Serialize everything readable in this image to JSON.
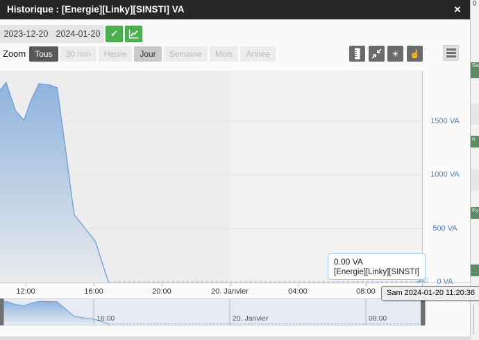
{
  "header": {
    "title": "Historique : [Energie][Linky][SINSTI] VA",
    "close": "×"
  },
  "controls": {
    "date_start": "2023-12-20",
    "date_end": "2024-01-20",
    "apply_label": "✓"
  },
  "zoom_bar": {
    "label": "Zoom",
    "buttons": [
      {
        "label": "Tous",
        "state": "active"
      },
      {
        "label": "30 min",
        "state": "disabled"
      },
      {
        "label": "Heure",
        "state": "disabled"
      },
      {
        "label": "Jour",
        "state": "enabled"
      },
      {
        "label": "Semaine",
        "state": "disabled"
      },
      {
        "label": "Mois",
        "state": "disabled"
      },
      {
        "label": "Année",
        "state": "disabled"
      }
    ],
    "tools": [
      {
        "icon": "ruler-icon"
      },
      {
        "icon": "compress-icon"
      },
      {
        "icon": "brightness-icon",
        "glyph": "☀"
      },
      {
        "icon": "hand-icon",
        "glyph": "☝"
      }
    ],
    "menu_icon": "hamburger-icon"
  },
  "chart_data": {
    "type": "area",
    "title": "",
    "xlabel": "",
    "ylabel": "VA",
    "x_unit": "hours since 2024-01-19 00:00",
    "xlim": [
      10.49,
      35.35
    ],
    "ylim": [
      0,
      1975
    ],
    "grid": true,
    "legend": "none",
    "day_band_split_t": 24,
    "series": [
      {
        "name": "[Energie][Linky][SINSTI]",
        "unit": "VA",
        "points": [
          [
            10.49,
            1790
          ],
          [
            10.85,
            1862
          ],
          [
            11.4,
            1600
          ],
          [
            11.9,
            1510
          ],
          [
            12.3,
            1690
          ],
          [
            12.78,
            1850
          ],
          [
            13.35,
            1840
          ],
          [
            13.85,
            1813
          ],
          [
            14.37,
            1210
          ],
          [
            14.85,
            630
          ],
          [
            15.0,
            600
          ],
          [
            15.6,
            480
          ],
          [
            16.1,
            380
          ],
          [
            16.5,
            180
          ],
          [
            16.87,
            0
          ],
          [
            35.34,
            0
          ]
        ]
      }
    ],
    "x_ticks": [
      {
        "t": 12,
        "label": "12:00"
      },
      {
        "t": 16,
        "label": "16:00"
      },
      {
        "t": 20,
        "label": "20:00"
      },
      {
        "t": 24,
        "label": "20. Janvier"
      },
      {
        "t": 28,
        "label": "04:00"
      },
      {
        "t": 32,
        "label": "08:00"
      }
    ],
    "y_ticks": [
      {
        "v": 0,
        "label": "0 VA"
      },
      {
        "v": 500,
        "label": "500 VA"
      },
      {
        "v": 1000,
        "label": "1000 VA"
      },
      {
        "v": 1500,
        "label": "1500 VA"
      }
    ],
    "navigator_ticks": [
      {
        "t": 16,
        "label": "16:00"
      },
      {
        "t": 24,
        "label": "20. Janvier"
      },
      {
        "t": 32,
        "label": "08:00"
      }
    ],
    "cursor": {
      "t": 35.343,
      "value": 0
    }
  },
  "tooltip": {
    "value": "0.00 VA",
    "series": "[Energie][Linky][SINSTI]"
  },
  "crosshair_label": "Sam 2024-01-20 11:20:36",
  "colors": {
    "line": "#6d9ed7",
    "fill_top": "rgba(111,160,216,0.75)",
    "fill_bottom": "rgba(111,160,216,0.03)",
    "y_label": "#4a7ebd",
    "green": "#4caf50",
    "header_bg": "#262626"
  },
  "background": {
    "top_right": "0",
    "fragments": [
      "Sa",
      "n",
      "Ky"
    ]
  }
}
